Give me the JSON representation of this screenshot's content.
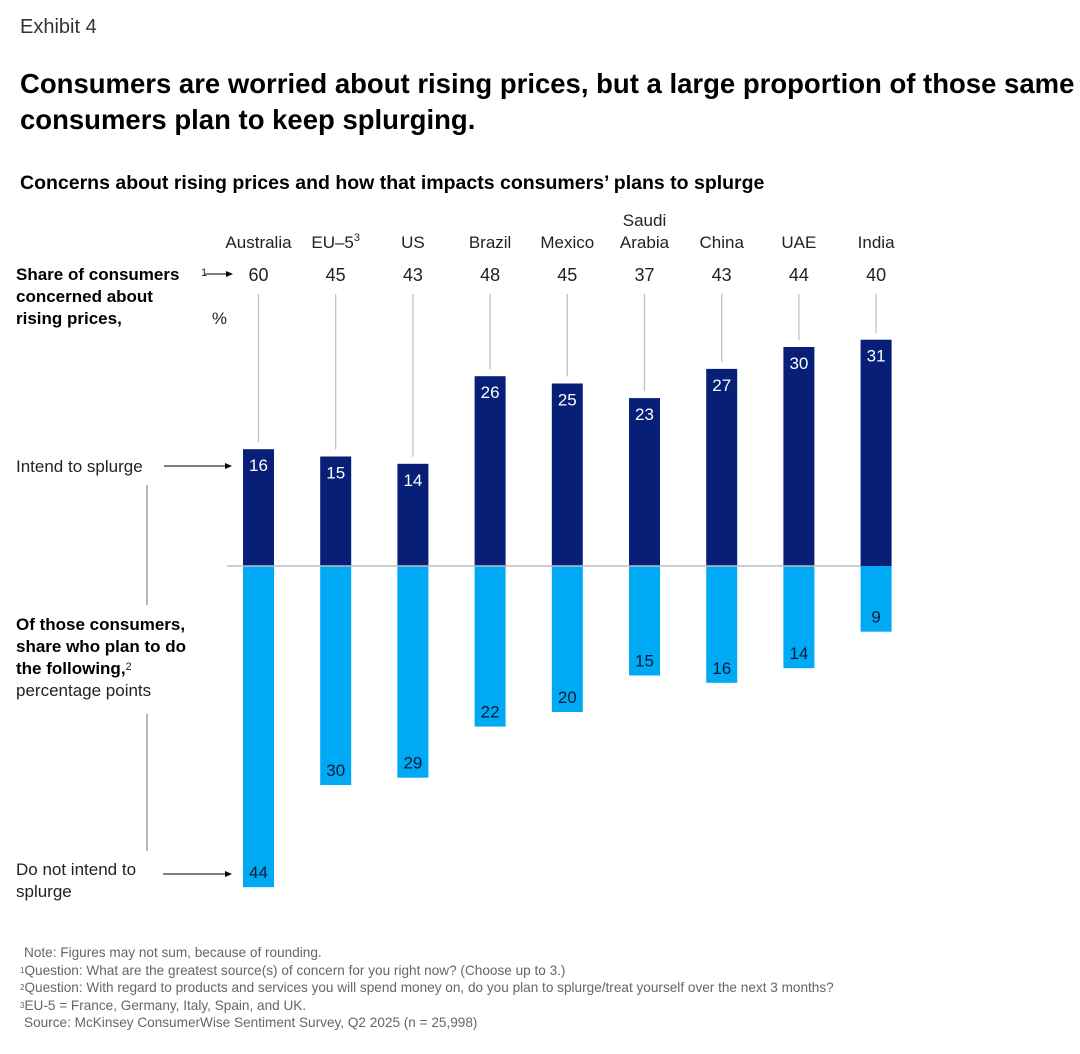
{
  "header": {
    "exhibit": "Exhibit 4",
    "title": "Consumers are worried about rising prices, but a large proportion of those same consumers plan to keep splurging.",
    "subtitle": "Concerns about rising prices and how that impacts consumers’ plans to splurge"
  },
  "labels": {
    "concern_bold": "Share of consumers concerned about rising prices,",
    "concern_sup": "1",
    "concern_unit": " %",
    "intend": "Intend to splurge",
    "share_bold": "Of those consumers, share who plan to do the following,",
    "share_sup": "2",
    "share_unit": "percentage points",
    "not_intend": "Do not intend to splurge"
  },
  "colors": {
    "intend": "#071f77",
    "not_intend": "#00a9f4",
    "connector": "#bdbdbd",
    "baseline": "#bdbdbd"
  },
  "chart_data": {
    "type": "bar",
    "title": "Concerns about rising prices and how that impacts consumers’ plans to splurge",
    "categories": [
      "Australia",
      "EU–5",
      "US",
      "Brazil",
      "Mexico",
      "Saudi Arabia",
      "China",
      "UAE",
      "India"
    ],
    "category_superscripts": [
      "",
      "3",
      "",
      "",
      "",
      "",
      "",
      "",
      ""
    ],
    "concerned_share_pct": [
      60,
      45,
      43,
      48,
      45,
      37,
      43,
      44,
      40
    ],
    "series": [
      {
        "name": "Intend to splurge",
        "direction": "up",
        "values": [
          16,
          15,
          14,
          26,
          25,
          23,
          27,
          30,
          31
        ]
      },
      {
        "name": "Do not intend to splurge",
        "direction": "down",
        "values": [
          44,
          30,
          29,
          22,
          20,
          15,
          16,
          14,
          9
        ]
      }
    ],
    "unit": "percentage points",
    "grid": false,
    "legend": "left-side annotations"
  },
  "notes": {
    "note": "Note: Figures may not sum, because of rounding.",
    "fn1_sup": "1",
    "fn1": "Question: What are the greatest source(s) of concern for you right now? (Choose up to 3.)",
    "fn2_sup": "2",
    "fn2": "Question: With regard to products and services you will spend money on, do you plan to splurge/treat yourself over the next 3 months?",
    "fn3_sup": "3",
    "fn3": "EU-5 = France, Germany, Italy, Spain, and UK.",
    "source": "Source: McKinsey ConsumerWise Sentiment Survey, Q2 2025 (n = 25,998)"
  }
}
